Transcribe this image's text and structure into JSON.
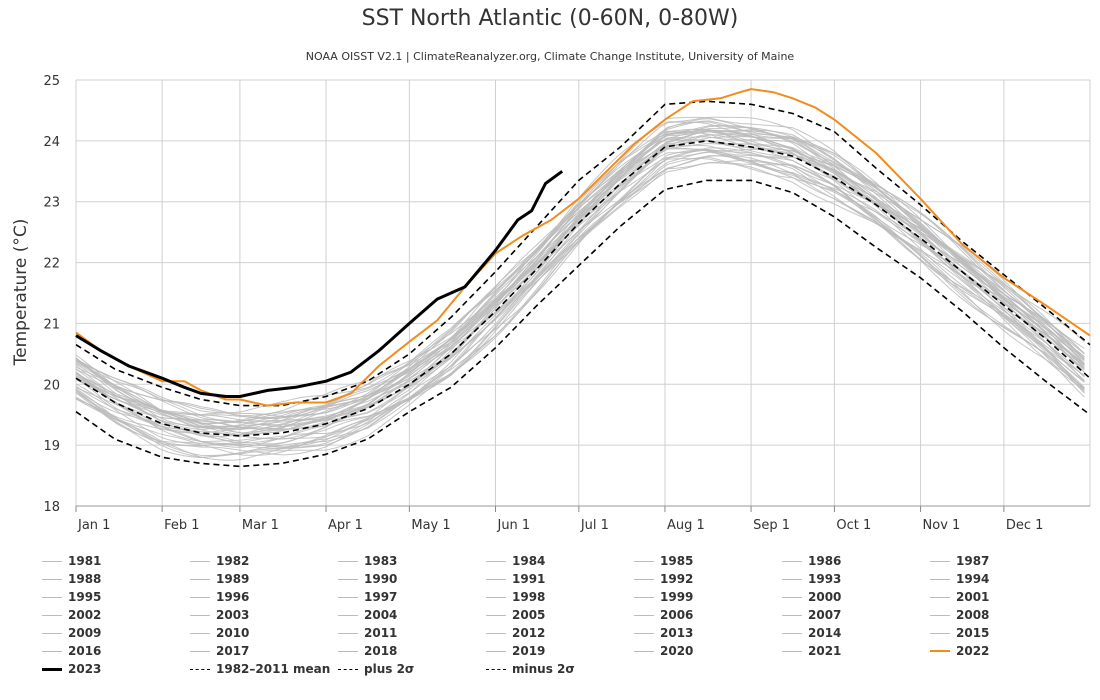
{
  "chart_data": {
    "type": "line",
    "title": "SST North Atlantic (0-60N, 0-80W)",
    "subtitle": "NOAA OISST V2.1 | ClimateReanalyzer.org, Climate Change Institute, University of Maine",
    "ylabel": "Temperature (°C)",
    "xlabel": "",
    "ylim": [
      18,
      25
    ],
    "yticks": [
      "18",
      "19",
      "20",
      "21",
      "22",
      "23",
      "24",
      "25"
    ],
    "xlim_day_of_year": [
      1,
      366
    ],
    "month_ticks": [
      "Jan 1",
      "Feb 1",
      "Mar 1",
      "Apr 1",
      "May 1",
      "Jun 1",
      "Jul 1",
      "Aug 1",
      "Sep 1",
      "Oct 1",
      "Nov 1",
      "Dec 1"
    ],
    "grid": true,
    "legend_position": "bottom",
    "colors": {
      "year_lines": "#bbbbbb",
      "year_2022": "#f28c1c",
      "year_2023": "#000000",
      "reference": "#000000"
    },
    "series": [
      {
        "name": "1982–2011 mean",
        "style": "dashed",
        "x": [
          1,
          15,
          32,
          46,
          60,
          75,
          91,
          106,
          121,
          136,
          152,
          167,
          182,
          197,
          213,
          228,
          244,
          259,
          274,
          289,
          305,
          320,
          335,
          350,
          366
        ],
        "values": [
          20.1,
          19.7,
          19.35,
          19.2,
          19.15,
          19.2,
          19.35,
          19.6,
          20.0,
          20.5,
          21.2,
          21.9,
          22.65,
          23.3,
          23.9,
          24.0,
          23.9,
          23.75,
          23.4,
          22.95,
          22.4,
          21.85,
          21.3,
          20.75,
          20.1
        ]
      },
      {
        "name": "plus 2σ",
        "style": "dashed",
        "x": [
          1,
          15,
          32,
          46,
          60,
          75,
          91,
          106,
          121,
          136,
          152,
          167,
          182,
          197,
          213,
          228,
          244,
          259,
          274,
          289,
          305,
          320,
          335,
          350,
          366
        ],
        "values": [
          20.65,
          20.25,
          19.95,
          19.75,
          19.65,
          19.65,
          19.8,
          20.05,
          20.5,
          21.1,
          21.85,
          22.6,
          23.35,
          23.9,
          24.6,
          24.65,
          24.6,
          24.45,
          24.15,
          23.55,
          22.95,
          22.35,
          21.8,
          21.25,
          20.65
        ]
      },
      {
        "name": "minus 2σ",
        "style": "dashed",
        "x": [
          1,
          15,
          32,
          46,
          60,
          75,
          91,
          106,
          121,
          136,
          152,
          167,
          182,
          197,
          213,
          228,
          244,
          259,
          274,
          289,
          305,
          320,
          335,
          350,
          366
        ],
        "values": [
          19.55,
          19.1,
          18.8,
          18.7,
          18.65,
          18.7,
          18.85,
          19.1,
          19.55,
          19.95,
          20.6,
          21.3,
          21.95,
          22.6,
          23.2,
          23.35,
          23.35,
          23.15,
          22.75,
          22.25,
          21.75,
          21.2,
          20.6,
          20.05,
          19.5
        ]
      },
      {
        "name": "2022",
        "style": "solid",
        "x": [
          1,
          10,
          20,
          32,
          40,
          46,
          55,
          60,
          70,
          80,
          91,
          100,
          110,
          121,
          131,
          141,
          152,
          162,
          172,
          182,
          192,
          202,
          213,
          223,
          233,
          240,
          244,
          252,
          259,
          267,
          274,
          289,
          305,
          320,
          335,
          350,
          366
        ],
        "values": [
          20.85,
          20.55,
          20.3,
          20.05,
          20.05,
          19.9,
          19.75,
          19.75,
          19.65,
          19.7,
          19.7,
          19.85,
          20.3,
          20.7,
          21.05,
          21.6,
          22.15,
          22.45,
          22.7,
          23.05,
          23.5,
          23.95,
          24.35,
          24.65,
          24.7,
          24.8,
          24.85,
          24.8,
          24.7,
          24.55,
          24.35,
          23.8,
          23.05,
          22.3,
          21.75,
          21.3,
          20.8
        ]
      },
      {
        "name": "2023",
        "style": "solid",
        "x": [
          1,
          10,
          20,
          32,
          40,
          46,
          55,
          60,
          70,
          80,
          91,
          100,
          110,
          121,
          131,
          141,
          152,
          160,
          165,
          170,
          173,
          176
        ],
        "values": [
          20.8,
          20.55,
          20.3,
          20.1,
          19.95,
          19.85,
          19.8,
          19.8,
          19.9,
          19.95,
          20.05,
          20.2,
          20.55,
          21.0,
          21.4,
          21.6,
          22.2,
          22.7,
          22.85,
          23.3,
          23.4,
          23.5
        ]
      }
    ],
    "year_series": [
      {
        "name": "1981",
        "offset": -0.35
      },
      {
        "name": "1982",
        "offset": -0.28
      },
      {
        "name": "1983",
        "offset": -0.22
      },
      {
        "name": "1984",
        "offset": -0.3
      },
      {
        "name": "1985",
        "offset": -0.33
      },
      {
        "name": "1986",
        "offset": -0.24
      },
      {
        "name": "1987",
        "offset": -0.1
      },
      {
        "name": "1988",
        "offset": -0.12
      },
      {
        "name": "1989",
        "offset": -0.2
      },
      {
        "name": "1990",
        "offset": -0.05
      },
      {
        "name": "1991",
        "offset": -0.08
      },
      {
        "name": "1992",
        "offset": -0.3
      },
      {
        "name": "1993",
        "offset": -0.25
      },
      {
        "name": "1994",
        "offset": -0.15
      },
      {
        "name": "1995",
        "offset": 0.05
      },
      {
        "name": "1996",
        "offset": -0.1
      },
      {
        "name": "1997",
        "offset": 0.0
      },
      {
        "name": "1998",
        "offset": 0.12
      },
      {
        "name": "1999",
        "offset": 0.05
      },
      {
        "name": "2000",
        "offset": 0.0
      },
      {
        "name": "2001",
        "offset": 0.08
      },
      {
        "name": "2002",
        "offset": 0.1
      },
      {
        "name": "2003",
        "offset": 0.15
      },
      {
        "name": "2004",
        "offset": 0.12
      },
      {
        "name": "2005",
        "offset": 0.2
      },
      {
        "name": "2006",
        "offset": 0.18
      },
      {
        "name": "2007",
        "offset": 0.1
      },
      {
        "name": "2008",
        "offset": 0.12
      },
      {
        "name": "2009",
        "offset": 0.08
      },
      {
        "name": "2010",
        "offset": 0.3
      },
      {
        "name": "2011",
        "offset": 0.15
      },
      {
        "name": "2012",
        "offset": 0.28
      },
      {
        "name": "2013",
        "offset": 0.18
      },
      {
        "name": "2014",
        "offset": 0.22
      },
      {
        "name": "2015",
        "offset": 0.25
      },
      {
        "name": "2016",
        "offset": 0.32
      },
      {
        "name": "2017",
        "offset": 0.3
      },
      {
        "name": "2018",
        "offset": 0.25
      },
      {
        "name": "2019",
        "offset": 0.3
      },
      {
        "name": "2020",
        "offset": 0.38
      },
      {
        "name": "2021",
        "offset": 0.4
      }
    ]
  }
}
